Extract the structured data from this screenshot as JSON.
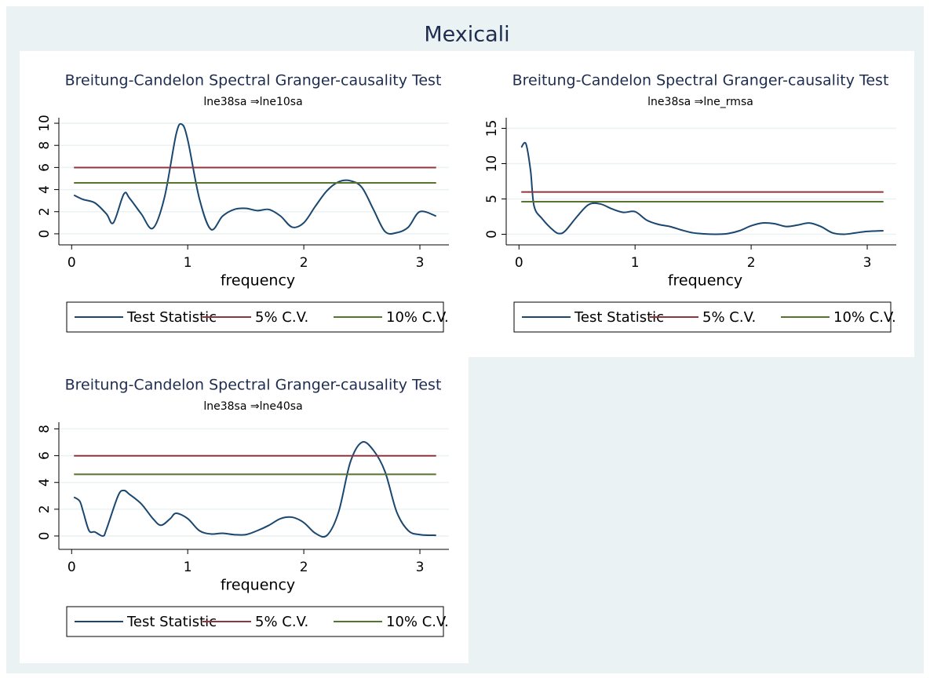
{
  "title": "Mexicali",
  "chart_data": [
    {
      "type": "line",
      "title": "Breitung-Candelon Spectral Granger-causality Test",
      "subtitle": "lne38sa ⇒lne10sa",
      "x_label": "frequency",
      "xlim": [
        -0.11,
        3.25
      ],
      "xticks": [
        0,
        1,
        2,
        3
      ],
      "ylim": [
        -1,
        10.5
      ],
      "yticks": [
        0,
        2,
        4,
        6,
        8,
        10
      ],
      "grid": true,
      "legend": "bottom",
      "series": [
        {
          "name": "Test Statistic",
          "color": "#1a476f",
          "x": [
            0.02,
            0.1,
            0.2,
            0.3,
            0.36,
            0.45,
            0.5,
            0.6,
            0.7,
            0.8,
            0.9,
            0.95,
            1.0,
            1.1,
            1.2,
            1.3,
            1.4,
            1.5,
            1.6,
            1.7,
            1.8,
            1.9,
            2.0,
            2.1,
            2.2,
            2.3,
            2.4,
            2.5,
            2.6,
            2.7,
            2.8,
            2.9,
            3.0,
            3.14
          ],
          "values": [
            3.5,
            3.1,
            2.8,
            1.8,
            1.0,
            3.6,
            3.2,
            1.8,
            0.5,
            3.3,
            9.0,
            9.9,
            8.5,
            3.2,
            0.4,
            1.6,
            2.2,
            2.3,
            2.1,
            2.2,
            1.6,
            0.6,
            1.0,
            2.5,
            3.9,
            4.7,
            4.8,
            4.2,
            2.2,
            0.2,
            0.1,
            0.6,
            2.0,
            1.6
          ]
        },
        {
          "name": "5% C.V.",
          "color": "#90353b",
          "x": [
            0.02,
            3.14
          ],
          "values": [
            5.99,
            5.99
          ]
        },
        {
          "name": "10% C.V.",
          "color": "#55752f",
          "x": [
            0.02,
            3.14
          ],
          "values": [
            4.61,
            4.61
          ]
        }
      ]
    },
    {
      "type": "line",
      "title": "Breitung-Candelon Spectral Granger-causality Test",
      "subtitle": "lne38sa ⇒lne_rmsa",
      "x_label": "frequency",
      "xlim": [
        -0.11,
        3.25
      ],
      "xticks": [
        0,
        1,
        2,
        3
      ],
      "ylim": [
        -1.5,
        16.5
      ],
      "yticks": [
        0,
        5,
        10,
        15
      ],
      "grid": true,
      "legend": "bottom",
      "series": [
        {
          "name": "Test Statistic",
          "color": "#1a476f",
          "x": [
            0.02,
            0.06,
            0.1,
            0.13,
            0.2,
            0.3,
            0.35,
            0.4,
            0.5,
            0.6,
            0.7,
            0.8,
            0.9,
            1.0,
            1.1,
            1.2,
            1.3,
            1.4,
            1.5,
            1.6,
            1.7,
            1.8,
            1.9,
            2.0,
            2.1,
            2.2,
            2.3,
            2.4,
            2.5,
            2.6,
            2.7,
            2.8,
            2.9,
            3.0,
            3.14
          ],
          "values": [
            12.3,
            12.8,
            9.0,
            4.0,
            2.2,
            0.5,
            0.1,
            0.5,
            2.5,
            4.2,
            4.3,
            3.6,
            3.1,
            3.2,
            2.0,
            1.4,
            1.1,
            0.6,
            0.2,
            0.05,
            0.0,
            0.1,
            0.5,
            1.2,
            1.6,
            1.5,
            1.1,
            1.3,
            1.6,
            1.1,
            0.2,
            0.0,
            0.2,
            0.4,
            0.5
          ]
        },
        {
          "name": "5% C.V.",
          "color": "#90353b",
          "x": [
            0.02,
            3.14
          ],
          "values": [
            5.99,
            5.99
          ]
        },
        {
          "name": "10% C.V.",
          "color": "#55752f",
          "x": [
            0.02,
            3.14
          ],
          "values": [
            4.61,
            4.61
          ]
        }
      ]
    },
    {
      "type": "line",
      "title": "Breitung-Candelon Spectral Granger-causality Test",
      "subtitle": "lne38sa ⇒lne40sa",
      "x_label": "frequency",
      "xlim": [
        -0.11,
        3.25
      ],
      "xticks": [
        0,
        1,
        2,
        3
      ],
      "ylim": [
        -1,
        8.5
      ],
      "yticks": [
        0,
        2,
        4,
        6,
        8
      ],
      "grid": true,
      "legend": "bottom",
      "series": [
        {
          "name": "Test Statistic",
          "color": "#1a476f",
          "x": [
            0.02,
            0.07,
            0.1,
            0.15,
            0.2,
            0.27,
            0.3,
            0.4,
            0.45,
            0.5,
            0.6,
            0.7,
            0.77,
            0.85,
            0.9,
            1.0,
            1.1,
            1.2,
            1.3,
            1.4,
            1.5,
            1.6,
            1.7,
            1.8,
            1.9,
            2.0,
            2.1,
            2.2,
            2.3,
            2.4,
            2.5,
            2.6,
            2.7,
            2.8,
            2.9,
            3.0,
            3.14
          ],
          "values": [
            2.9,
            2.6,
            1.8,
            0.4,
            0.3,
            0.0,
            0.5,
            3.0,
            3.4,
            3.1,
            2.4,
            1.3,
            0.8,
            1.3,
            1.7,
            1.3,
            0.4,
            0.15,
            0.2,
            0.1,
            0.1,
            0.4,
            0.8,
            1.3,
            1.4,
            1.0,
            0.2,
            0.05,
            1.8,
            5.5,
            7.0,
            6.4,
            4.8,
            1.8,
            0.4,
            0.1,
            0.05
          ]
        },
        {
          "name": "5% C.V.",
          "color": "#90353b",
          "x": [
            0.02,
            3.14
          ],
          "values": [
            5.99,
            5.99
          ]
        },
        {
          "name": "10% C.V.",
          "color": "#55752f",
          "x": [
            0.02,
            3.14
          ],
          "values": [
            4.61,
            4.61
          ]
        }
      ]
    }
  ]
}
